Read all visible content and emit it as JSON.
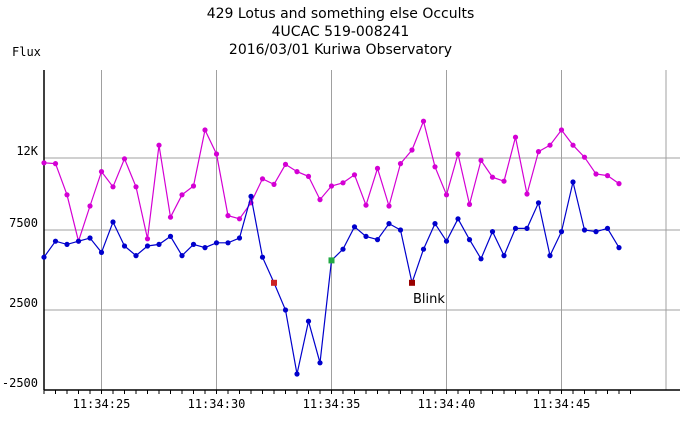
{
  "title_lines": [
    "429 Lotus and something else Occults",
    "4UCAC 519-008241",
    "2016/03/01 Kuriwa Observatory"
  ],
  "chart_data": {
    "type": "line",
    "ylabel": "Flux",
    "ylim": [
      -2500,
      17500
    ],
    "y_ticks": [
      {
        "value": 12000,
        "label": "12K"
      },
      {
        "value": 7500,
        "label": "7500"
      },
      {
        "value": 2500,
        "label": "2500"
      },
      {
        "value": -2500,
        "label": "-2500"
      }
    ],
    "x_tick_labels": [
      "11:34:25",
      "11:34:30",
      "11:34:35",
      "11:34:40",
      "11:34:45"
    ],
    "x_start_time": "11:34:22.5",
    "x_step_seconds": 0.5,
    "grid": true,
    "series": [
      {
        "color": "#d400d4",
        "values": [
          11700,
          11650,
          9700,
          6800,
          9000,
          11150,
          10200,
          11950,
          10200,
          6950,
          12800,
          8300,
          9700,
          10250,
          13750,
          12250,
          8400,
          8200,
          9200,
          10700,
          10350,
          11600,
          11150,
          10850,
          9400,
          10250,
          10450,
          10950,
          9050,
          11350,
          9000,
          11650,
          12500,
          14300,
          11450,
          9700,
          12250,
          9100,
          11850,
          10800,
          10550,
          13300,
          9750,
          12400,
          12800,
          13750,
          12800,
          12050,
          11000,
          10900,
          10400
        ],
        "markers": [
          {
            "index": 0,
            "color": "#d400d4"
          }
        ]
      },
      {
        "color": "#0000cc",
        "values": [
          5800,
          6800,
          6600,
          6800,
          7000,
          6100,
          8000,
          6500,
          5900,
          6500,
          6600,
          7100,
          5900,
          6600,
          6400,
          6700,
          6700,
          7000,
          9600,
          5800,
          4200,
          2500,
          -1500,
          1800,
          -800,
          5600,
          6300,
          7700,
          7100,
          6900,
          7900,
          7500,
          4200,
          6300,
          7900,
          6800,
          8200,
          6900,
          5700,
          7400,
          5900,
          7600,
          7600,
          9200,
          5900,
          7400,
          10500,
          7500,
          7400,
          7600,
          6400
        ],
        "special_points": [
          {
            "index": 20,
            "color": "#cc2222"
          },
          {
            "index": 25,
            "color": "#22aa44"
          },
          {
            "index": 32,
            "color": "#990000"
          }
        ]
      }
    ],
    "annotations": [
      {
        "text": "Blink",
        "index": 32
      }
    ]
  },
  "colors": {
    "grid": "#a0a0a0",
    "axis": "#000000",
    "background": "#ffffff"
  }
}
